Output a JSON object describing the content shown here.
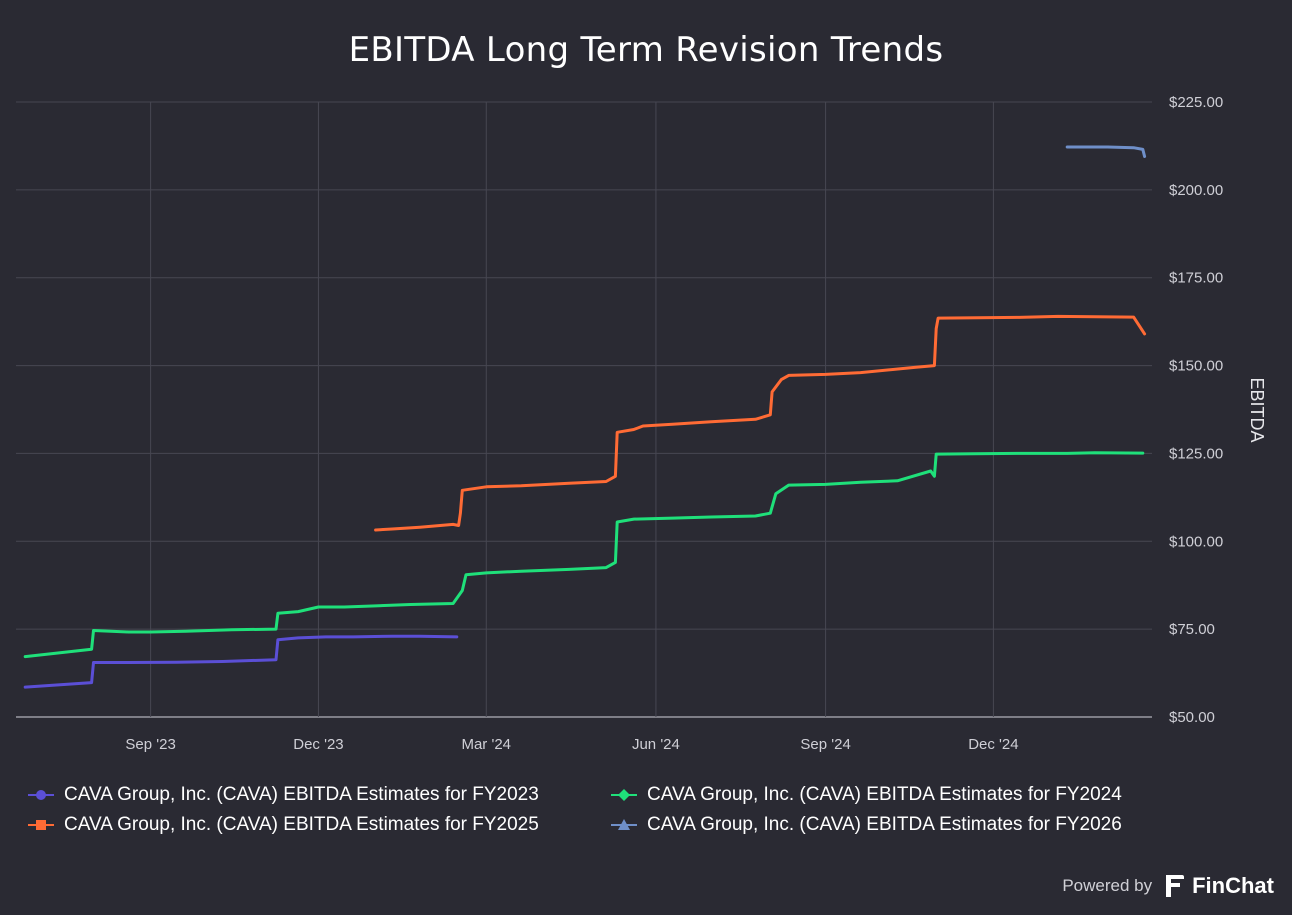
{
  "chart_data": {
    "type": "line",
    "title": "EBITDA Long Term Revision Trends",
    "ylabel": "EBITDA",
    "xlabel": "",
    "xlim": [
      "2023-06-20",
      "2025-02-25"
    ],
    "ylim": [
      50,
      225
    ],
    "y_ticks": [
      50,
      75,
      100,
      125,
      150,
      175,
      200,
      225
    ],
    "y_tick_labels": [
      "$50.00",
      "$75.00",
      "$100.00",
      "$125.00",
      "$150.00",
      "$175.00",
      "$200.00",
      "$225.00"
    ],
    "x_ticks": [
      "2023-09-01",
      "2023-12-01",
      "2024-03-01",
      "2024-06-01",
      "2024-09-01",
      "2024-12-01"
    ],
    "x_tick_labels": [
      "Sep '23",
      "Dec '23",
      "Mar '24",
      "Jun '24",
      "Sep '24",
      "Dec '24"
    ],
    "grid": true,
    "legend_position": "bottom",
    "series": [
      {
        "name": "CAVA Group, Inc. (CAVA) EBITDA Estimates for FY2023",
        "color": "#5b4fd6",
        "marker": "circle",
        "points": [
          [
            "2023-06-25",
            58.5
          ],
          [
            "2023-07-31",
            59.8
          ],
          [
            "2023-08-01",
            65.5
          ],
          [
            "2023-08-20",
            65.5
          ],
          [
            "2023-09-15",
            65.6
          ],
          [
            "2023-10-10",
            65.8
          ],
          [
            "2023-11-08",
            66.3
          ],
          [
            "2023-11-09",
            72.0
          ],
          [
            "2023-11-20",
            72.5
          ],
          [
            "2023-12-05",
            72.8
          ],
          [
            "2023-12-20",
            72.8
          ],
          [
            "2024-01-10",
            73.0
          ],
          [
            "2024-01-25",
            73.0
          ],
          [
            "2024-02-14",
            72.8
          ]
        ]
      },
      {
        "name": "CAVA Group, Inc. (CAVA) EBITDA Estimates for FY2024",
        "color": "#1fe07a",
        "marker": "diamond",
        "points": [
          [
            "2023-06-25",
            67.2
          ],
          [
            "2023-07-31",
            69.3
          ],
          [
            "2023-08-01",
            74.6
          ],
          [
            "2023-08-20",
            74.2
          ],
          [
            "2023-09-01",
            74.2
          ],
          [
            "2023-09-20",
            74.4
          ],
          [
            "2023-10-15",
            74.8
          ],
          [
            "2023-11-08",
            75.0
          ],
          [
            "2023-11-09",
            79.5
          ],
          [
            "2023-11-20",
            80.0
          ],
          [
            "2023-12-01",
            81.3
          ],
          [
            "2023-12-15",
            81.3
          ],
          [
            "2024-01-01",
            81.6
          ],
          [
            "2024-01-20",
            82.0
          ],
          [
            "2024-02-12",
            82.3
          ],
          [
            "2024-02-17",
            86.0
          ],
          [
            "2024-02-19",
            90.5
          ],
          [
            "2024-03-01",
            91.0
          ],
          [
            "2024-03-20",
            91.5
          ],
          [
            "2024-04-15",
            92.0
          ],
          [
            "2024-05-05",
            92.5
          ],
          [
            "2024-05-10",
            94.0
          ],
          [
            "2024-05-11",
            105.5
          ],
          [
            "2024-05-20",
            106.3
          ],
          [
            "2024-06-10",
            106.6
          ],
          [
            "2024-07-01",
            106.9
          ],
          [
            "2024-07-25",
            107.2
          ],
          [
            "2024-08-02",
            108.0
          ],
          [
            "2024-08-05",
            113.5
          ],
          [
            "2024-08-12",
            116.0
          ],
          [
            "2024-09-01",
            116.2
          ],
          [
            "2024-09-20",
            116.8
          ],
          [
            "2024-10-10",
            117.2
          ],
          [
            "2024-10-28",
            120.0
          ],
          [
            "2024-10-30",
            118.5
          ],
          [
            "2024-10-31",
            124.8
          ],
          [
            "2024-11-20",
            124.9
          ],
          [
            "2024-12-15",
            125.0
          ],
          [
            "2025-01-10",
            125.0
          ],
          [
            "2025-01-25",
            125.2
          ],
          [
            "2025-02-20",
            125.1
          ]
        ]
      },
      {
        "name": "CAVA Group, Inc. (CAVA) EBITDA Estimates for FY2025",
        "color": "#ff6b35",
        "marker": "square",
        "points": [
          [
            "2024-01-01",
            103.2
          ],
          [
            "2024-01-10",
            103.5
          ],
          [
            "2024-01-25",
            104.0
          ],
          [
            "2024-02-12",
            104.8
          ],
          [
            "2024-02-15",
            104.5
          ],
          [
            "2024-02-16",
            108.0
          ],
          [
            "2024-02-17",
            114.5
          ],
          [
            "2024-03-01",
            115.5
          ],
          [
            "2024-03-20",
            115.8
          ],
          [
            "2024-04-15",
            116.5
          ],
          [
            "2024-05-05",
            117.0
          ],
          [
            "2024-05-10",
            118.5
          ],
          [
            "2024-05-11",
            131.0
          ],
          [
            "2024-05-20",
            131.8
          ],
          [
            "2024-05-25",
            132.8
          ],
          [
            "2024-06-10",
            133.3
          ],
          [
            "2024-07-01",
            134.0
          ],
          [
            "2024-07-25",
            134.7
          ],
          [
            "2024-08-02",
            136.0
          ],
          [
            "2024-08-03",
            142.5
          ],
          [
            "2024-08-08",
            146.0
          ],
          [
            "2024-08-12",
            147.2
          ],
          [
            "2024-09-01",
            147.5
          ],
          [
            "2024-09-20",
            148.0
          ],
          [
            "2024-10-20",
            149.5
          ],
          [
            "2024-10-30",
            150.0
          ],
          [
            "2024-10-31",
            160.5
          ],
          [
            "2024-11-01",
            163.5
          ],
          [
            "2024-12-15",
            163.7
          ],
          [
            "2025-01-05",
            164.0
          ],
          [
            "2025-02-15",
            163.8
          ],
          [
            "2025-02-21",
            159.0
          ]
        ]
      },
      {
        "name": "CAVA Group, Inc. (CAVA) EBITDA Estimates for FY2026",
        "color": "#6f8fc9",
        "marker": "triangle",
        "points": [
          [
            "2025-01-10",
            212.2
          ],
          [
            "2025-02-01",
            212.2
          ],
          [
            "2025-02-15",
            212.0
          ],
          [
            "2025-02-20",
            211.5
          ],
          [
            "2025-02-21",
            209.5
          ]
        ]
      }
    ]
  },
  "footer": {
    "powered_by": "Powered by",
    "brand": "FinChat",
    "brand_icon": "finchat-logo-icon"
  }
}
